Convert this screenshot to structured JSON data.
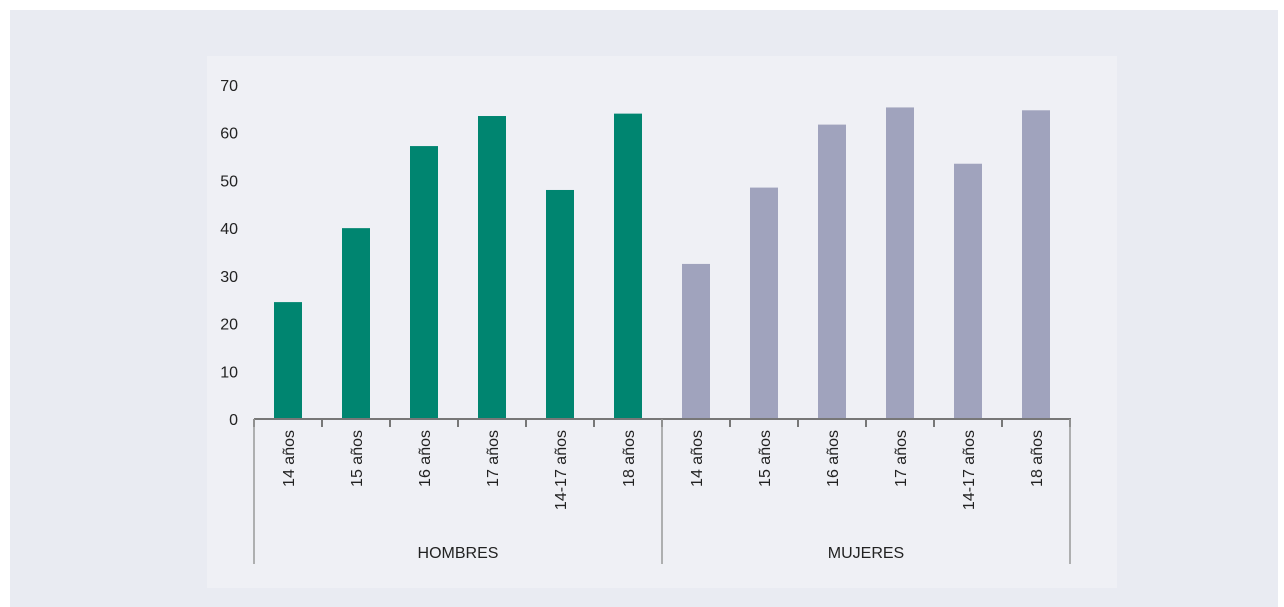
{
  "chart_data": {
    "type": "bar",
    "ylim": [
      0,
      70
    ],
    "yticks": [
      0,
      10,
      20,
      30,
      40,
      50,
      60,
      70
    ],
    "grid": false,
    "groups": [
      {
        "label": "HOMBRES",
        "color": "#008570",
        "categories": [
          "14 años",
          "15 años",
          "16 años",
          "17 años",
          "14-17 años",
          "18 años"
        ],
        "values": [
          24.5,
          40,
          57.2,
          63.5,
          48,
          64
        ]
      },
      {
        "label": "MUJERES",
        "color": "#a0a3bd",
        "categories": [
          "14 años",
          "15 años",
          "16 años",
          "17 años",
          "14-17 años",
          "18 años"
        ],
        "values": [
          32.5,
          48.5,
          61.7,
          65.3,
          53.5,
          64.7
        ]
      }
    ]
  }
}
